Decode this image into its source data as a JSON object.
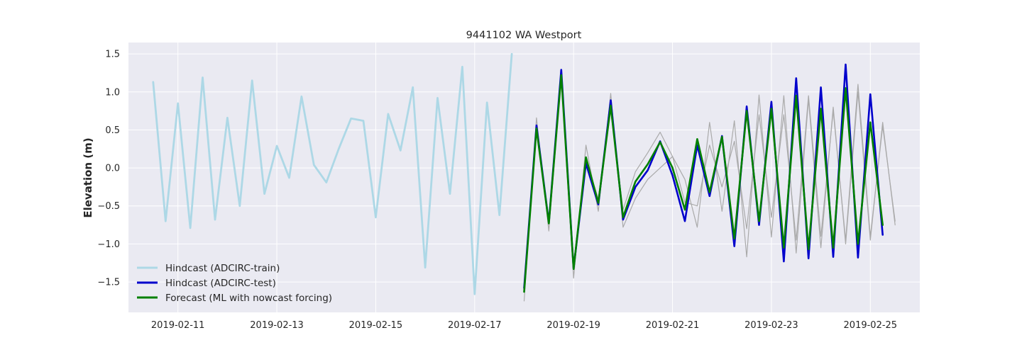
{
  "chart_data": {
    "type": "line",
    "title": "9441102 WA Westport",
    "xlabel": "",
    "ylabel": "Elevation (m)",
    "x_is_date": true,
    "xlim": [
      "2019-02-10T00:00",
      "2019-02-26T00:00"
    ],
    "ylim": [
      -1.9,
      1.65
    ],
    "xticks": [
      "2019-02-11",
      "2019-02-13",
      "2019-02-15",
      "2019-02-17",
      "2019-02-19",
      "2019-02-21",
      "2019-02-23",
      "2019-02-25"
    ],
    "yticks": [
      -1.5,
      -1.0,
      -0.5,
      0.0,
      0.5,
      1.0,
      1.5
    ],
    "ytick_labels": [
      "−1.5",
      "−1.0",
      "−0.5",
      "0.0",
      "0.5",
      "1.0",
      "1.5"
    ],
    "grid": true,
    "legend_position": "lower-left",
    "series": [
      {
        "name": "Hindcast (ADCIRC-train)",
        "color": "#add8e6",
        "in_legend": true,
        "points": [
          [
            "2019-02-10T12:00",
            1.13
          ],
          [
            "2019-02-10T18:00",
            -0.7
          ],
          [
            "2019-02-11T00:00",
            0.85
          ],
          [
            "2019-02-11T06:00",
            -0.79
          ],
          [
            "2019-02-11T12:00",
            1.19
          ],
          [
            "2019-02-11T18:00",
            -0.68
          ],
          [
            "2019-02-12T00:00",
            0.66
          ],
          [
            "2019-02-12T06:00",
            -0.5
          ],
          [
            "2019-02-12T12:00",
            1.15
          ],
          [
            "2019-02-12T18:00",
            -0.34
          ],
          [
            "2019-02-13T00:00",
            0.29
          ],
          [
            "2019-02-13T06:00",
            -0.13
          ],
          [
            "2019-02-13T12:00",
            0.94
          ],
          [
            "2019-02-13T18:00",
            0.04
          ],
          [
            "2019-02-14T00:00",
            -0.19
          ],
          [
            "2019-02-14T06:00",
            0.25
          ],
          [
            "2019-02-14T12:00",
            0.65
          ],
          [
            "2019-02-14T18:00",
            0.62
          ],
          [
            "2019-02-15T00:00",
            -0.65
          ],
          [
            "2019-02-15T06:00",
            0.71
          ],
          [
            "2019-02-15T12:00",
            0.23
          ],
          [
            "2019-02-15T18:00",
            1.06
          ],
          [
            "2019-02-16T00:00",
            -1.31
          ],
          [
            "2019-02-16T06:00",
            0.92
          ],
          [
            "2019-02-16T12:00",
            -0.34
          ],
          [
            "2019-02-16T18:00",
            1.33
          ],
          [
            "2019-02-17T00:00",
            -1.66
          ],
          [
            "2019-02-17T06:00",
            0.86
          ],
          [
            "2019-02-17T12:00",
            -0.62
          ],
          [
            "2019-02-17T18:00",
            1.5
          ]
        ]
      },
      {
        "name": "",
        "color": "#aaaaaa",
        "in_legend": false,
        "points": [
          [
            "2019-02-18T00:00",
            -1.75
          ],
          [
            "2019-02-18T06:00",
            0.66
          ],
          [
            "2019-02-18T12:00",
            -0.83
          ],
          [
            "2019-02-18T18:00",
            1.2
          ],
          [
            "2019-02-19T00:00",
            -1.45
          ],
          [
            "2019-02-19T06:00",
            0.3
          ],
          [
            "2019-02-19T12:00",
            -0.57
          ],
          [
            "2019-02-19T18:00",
            0.98
          ],
          [
            "2019-02-20T00:00",
            -0.78
          ],
          [
            "2019-02-20T06:00",
            -0.4
          ],
          [
            "2019-02-20T12:00",
            -0.15
          ],
          [
            "2019-02-20T18:00",
            0.0
          ],
          [
            "2019-02-21T00:00",
            0.15
          ],
          [
            "2019-02-21T06:00",
            -0.15
          ],
          [
            "2019-02-21T12:00",
            -0.78
          ],
          [
            "2019-02-21T18:00",
            0.6
          ],
          [
            "2019-02-22T00:00",
            -0.57
          ],
          [
            "2019-02-22T06:00",
            0.62
          ],
          [
            "2019-02-22T12:00",
            -1.17
          ],
          [
            "2019-02-22T18:00",
            0.96
          ],
          [
            "2019-02-23T00:00",
            -0.91
          ],
          [
            "2019-02-23T06:00",
            0.95
          ],
          [
            "2019-02-23T12:00",
            -1.12
          ],
          [
            "2019-02-23T18:00",
            0.9
          ],
          [
            "2019-02-24T00:00",
            -1.05
          ],
          [
            "2019-02-24T06:00",
            0.8
          ],
          [
            "2019-02-24T12:00",
            -1.0
          ],
          [
            "2019-02-24T18:00",
            1.0
          ],
          [
            "2019-02-25T00:00",
            -0.95
          ],
          [
            "2019-02-25T06:00",
            0.6
          ],
          [
            "2019-02-25T12:00",
            -0.75
          ]
        ]
      },
      {
        "name": "",
        "color": "#aaaaaa",
        "in_legend": false,
        "points": [
          [
            "2019-02-18T00:00",
            -1.55
          ],
          [
            "2019-02-18T06:00",
            0.5
          ],
          [
            "2019-02-18T12:00",
            -0.7
          ],
          [
            "2019-02-18T18:00",
            1.22
          ],
          [
            "2019-02-19T00:00",
            -1.25
          ],
          [
            "2019-02-19T06:00",
            0.1
          ],
          [
            "2019-02-19T12:00",
            -0.4
          ],
          [
            "2019-02-19T18:00",
            0.75
          ],
          [
            "2019-02-20T00:00",
            -0.55
          ],
          [
            "2019-02-20T06:00",
            -0.05
          ],
          [
            "2019-02-20T12:00",
            0.2
          ],
          [
            "2019-02-20T18:00",
            0.47
          ],
          [
            "2019-02-21T00:00",
            0.15
          ],
          [
            "2019-02-21T06:00",
            -0.45
          ],
          [
            "2019-02-21T12:00",
            -0.5
          ],
          [
            "2019-02-21T18:00",
            0.3
          ],
          [
            "2019-02-22T00:00",
            -0.25
          ],
          [
            "2019-02-22T06:00",
            0.35
          ],
          [
            "2019-02-22T12:00",
            -0.8
          ],
          [
            "2019-02-22T18:00",
            0.7
          ],
          [
            "2019-02-23T00:00",
            -0.65
          ],
          [
            "2019-02-23T06:00",
            0.7
          ],
          [
            "2019-02-23T12:00",
            -0.95
          ],
          [
            "2019-02-23T18:00",
            0.95
          ],
          [
            "2019-02-24T00:00",
            -0.9
          ],
          [
            "2019-02-24T06:00",
            0.75
          ],
          [
            "2019-02-24T12:00",
            -0.95
          ],
          [
            "2019-02-24T18:00",
            1.1
          ],
          [
            "2019-02-25T00:00",
            -0.9
          ],
          [
            "2019-02-25T06:00",
            0.55
          ],
          [
            "2019-02-25T12:00",
            -0.7
          ]
        ]
      },
      {
        "name": "Hindcast (ADCIRC-test)",
        "color": "#0000cc",
        "in_legend": true,
        "points": [
          [
            "2019-02-18T00:00",
            -1.58
          ],
          [
            "2019-02-18T06:00",
            0.56
          ],
          [
            "2019-02-18T12:00",
            -0.72
          ],
          [
            "2019-02-18T18:00",
            1.29
          ],
          [
            "2019-02-19T00:00",
            -1.32
          ],
          [
            "2019-02-19T06:00",
            0.06
          ],
          [
            "2019-02-19T12:00",
            -0.48
          ],
          [
            "2019-02-19T18:00",
            0.89
          ],
          [
            "2019-02-20T00:00",
            -0.68
          ],
          [
            "2019-02-20T06:00",
            -0.25
          ],
          [
            "2019-02-20T12:00",
            -0.03
          ],
          [
            "2019-02-20T18:00",
            0.35
          ],
          [
            "2019-02-21T00:00",
            -0.1
          ],
          [
            "2019-02-21T06:00",
            -0.7
          ],
          [
            "2019-02-21T12:00",
            0.3
          ],
          [
            "2019-02-21T18:00",
            -0.37
          ],
          [
            "2019-02-22T00:00",
            0.42
          ],
          [
            "2019-02-22T06:00",
            -1.03
          ],
          [
            "2019-02-22T12:00",
            0.81
          ],
          [
            "2019-02-22T18:00",
            -0.75
          ],
          [
            "2019-02-23T00:00",
            0.87
          ],
          [
            "2019-02-23T06:00",
            -1.23
          ],
          [
            "2019-02-23T12:00",
            1.18
          ],
          [
            "2019-02-23T18:00",
            -1.19
          ],
          [
            "2019-02-24T00:00",
            1.06
          ],
          [
            "2019-02-24T06:00",
            -1.17
          ],
          [
            "2019-02-24T12:00",
            1.36
          ],
          [
            "2019-02-24T18:00",
            -1.18
          ],
          [
            "2019-02-25T00:00",
            0.97
          ],
          [
            "2019-02-25T06:00",
            -0.88
          ]
        ]
      },
      {
        "name": "Forecast (ML with nowcast forcing)",
        "color": "#008000",
        "in_legend": true,
        "points": [
          [
            "2019-02-18T00:00",
            -1.63
          ],
          [
            "2019-02-18T06:00",
            0.52
          ],
          [
            "2019-02-18T12:00",
            -0.73
          ],
          [
            "2019-02-18T18:00",
            1.22
          ],
          [
            "2019-02-19T00:00",
            -1.33
          ],
          [
            "2019-02-19T06:00",
            0.14
          ],
          [
            "2019-02-19T12:00",
            -0.46
          ],
          [
            "2019-02-19T18:00",
            0.82
          ],
          [
            "2019-02-20T00:00",
            -0.65
          ],
          [
            "2019-02-20T06:00",
            -0.18
          ],
          [
            "2019-02-20T12:00",
            0.05
          ],
          [
            "2019-02-20T18:00",
            0.34
          ],
          [
            "2019-02-21T00:00",
            0.0
          ],
          [
            "2019-02-21T06:00",
            -0.55
          ],
          [
            "2019-02-21T12:00",
            0.38
          ],
          [
            "2019-02-21T18:00",
            -0.32
          ],
          [
            "2019-02-22T00:00",
            0.41
          ],
          [
            "2019-02-22T06:00",
            -0.93
          ],
          [
            "2019-02-22T12:00",
            0.75
          ],
          [
            "2019-02-22T18:00",
            -0.7
          ],
          [
            "2019-02-23T00:00",
            0.78
          ],
          [
            "2019-02-23T06:00",
            -1.05
          ],
          [
            "2019-02-23T12:00",
            0.95
          ],
          [
            "2019-02-23T18:00",
            -1.07
          ],
          [
            "2019-02-24T00:00",
            0.78
          ],
          [
            "2019-02-24T06:00",
            -1.05
          ],
          [
            "2019-02-24T12:00",
            1.05
          ],
          [
            "2019-02-24T18:00",
            -1.0
          ],
          [
            "2019-02-25T00:00",
            0.6
          ],
          [
            "2019-02-25T06:00",
            -0.75
          ]
        ]
      }
    ]
  }
}
